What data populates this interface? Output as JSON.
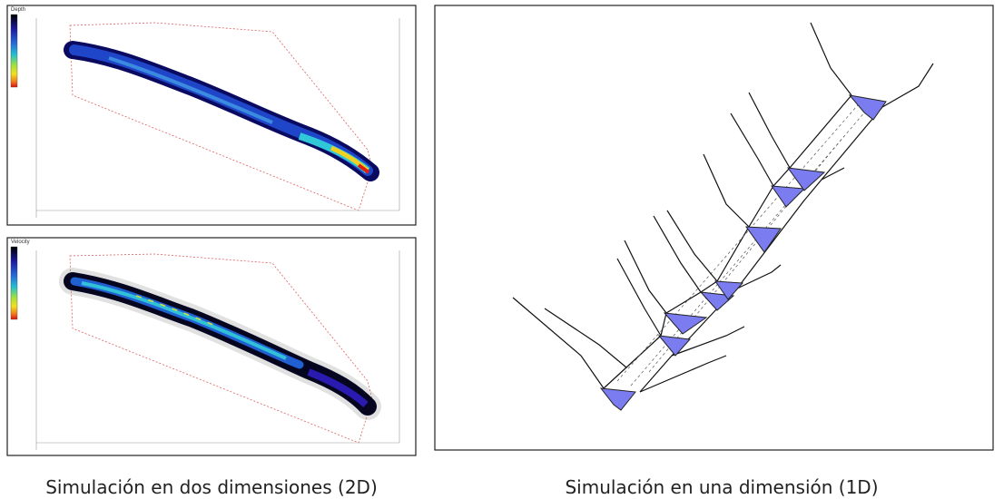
{
  "panels": [
    {
      "legend_title": "Depth"
    },
    {
      "legend_title": "Velocity"
    }
  ],
  "captions": {
    "left": "Simulación en dos dimensiones (2D)",
    "right": "Simulación en una dimensión (1D)"
  }
}
